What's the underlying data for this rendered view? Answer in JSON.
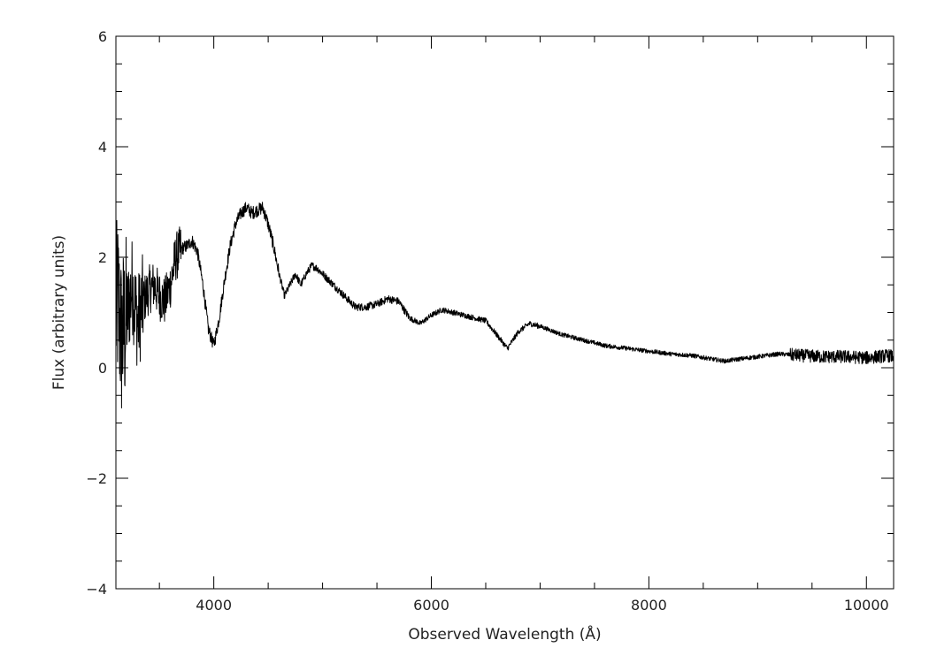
{
  "chart_data": {
    "type": "line",
    "xlabel": "Observed Wavelength (Å)",
    "ylabel": "Flux (arbitrary units)",
    "xlim": [
      3100,
      10250
    ],
    "ylim": [
      -4,
      6
    ],
    "xticks": [
      4000,
      6000,
      8000,
      10000
    ],
    "yticks": [
      -4,
      -2,
      0,
      2,
      4,
      6
    ],
    "x_minor_step": 500,
    "y_minor_step": 0.5,
    "grid": false,
    "line_color": "#000000",
    "series": [
      {
        "x": [
          3100,
          3120,
          3150,
          3200,
          3250,
          3300,
          3350,
          3400,
          3450,
          3500,
          3550,
          3600,
          3650,
          3700,
          3750,
          3800,
          3850,
          3900,
          3950,
          4000,
          4050,
          4100,
          4150,
          4200,
          4250,
          4300,
          4350,
          4400,
          4450,
          4500,
          4550,
          4600,
          4650,
          4700,
          4750,
          4800,
          4850,
          4900,
          4950,
          5000,
          5100,
          5200,
          5300,
          5400,
          5500,
          5600,
          5700,
          5800,
          5900,
          6000,
          6100,
          6200,
          6300,
          6400,
          6500,
          6600,
          6700,
          6800,
          6900,
          7000,
          7200,
          7400,
          7600,
          7800,
          8000,
          8200,
          8400,
          8600,
          8700,
          8800,
          9000,
          9200,
          9400,
          9600,
          9800,
          10000,
          10200,
          10250
        ],
        "y": [
          1.0,
          1.2,
          0.5,
          0.9,
          1.5,
          0.8,
          1.2,
          1.4,
          1.5,
          1.3,
          1.2,
          1.5,
          2.0,
          2.15,
          2.2,
          2.3,
          2.1,
          1.5,
          0.7,
          0.4,
          0.9,
          1.6,
          2.2,
          2.6,
          2.8,
          2.9,
          2.8,
          2.85,
          2.9,
          2.6,
          2.2,
          1.7,
          1.3,
          1.5,
          1.7,
          1.5,
          1.7,
          1.85,
          1.8,
          1.7,
          1.5,
          1.3,
          1.1,
          1.1,
          1.15,
          1.25,
          1.2,
          0.9,
          0.8,
          0.95,
          1.05,
          1.0,
          0.95,
          0.9,
          0.85,
          0.6,
          0.35,
          0.65,
          0.8,
          0.75,
          0.6,
          0.5,
          0.4,
          0.35,
          0.3,
          0.25,
          0.22,
          0.15,
          0.12,
          0.15,
          0.2,
          0.25,
          0.22,
          0.2,
          0.2,
          0.18,
          0.22,
          0.2
        ]
      }
    ]
  }
}
